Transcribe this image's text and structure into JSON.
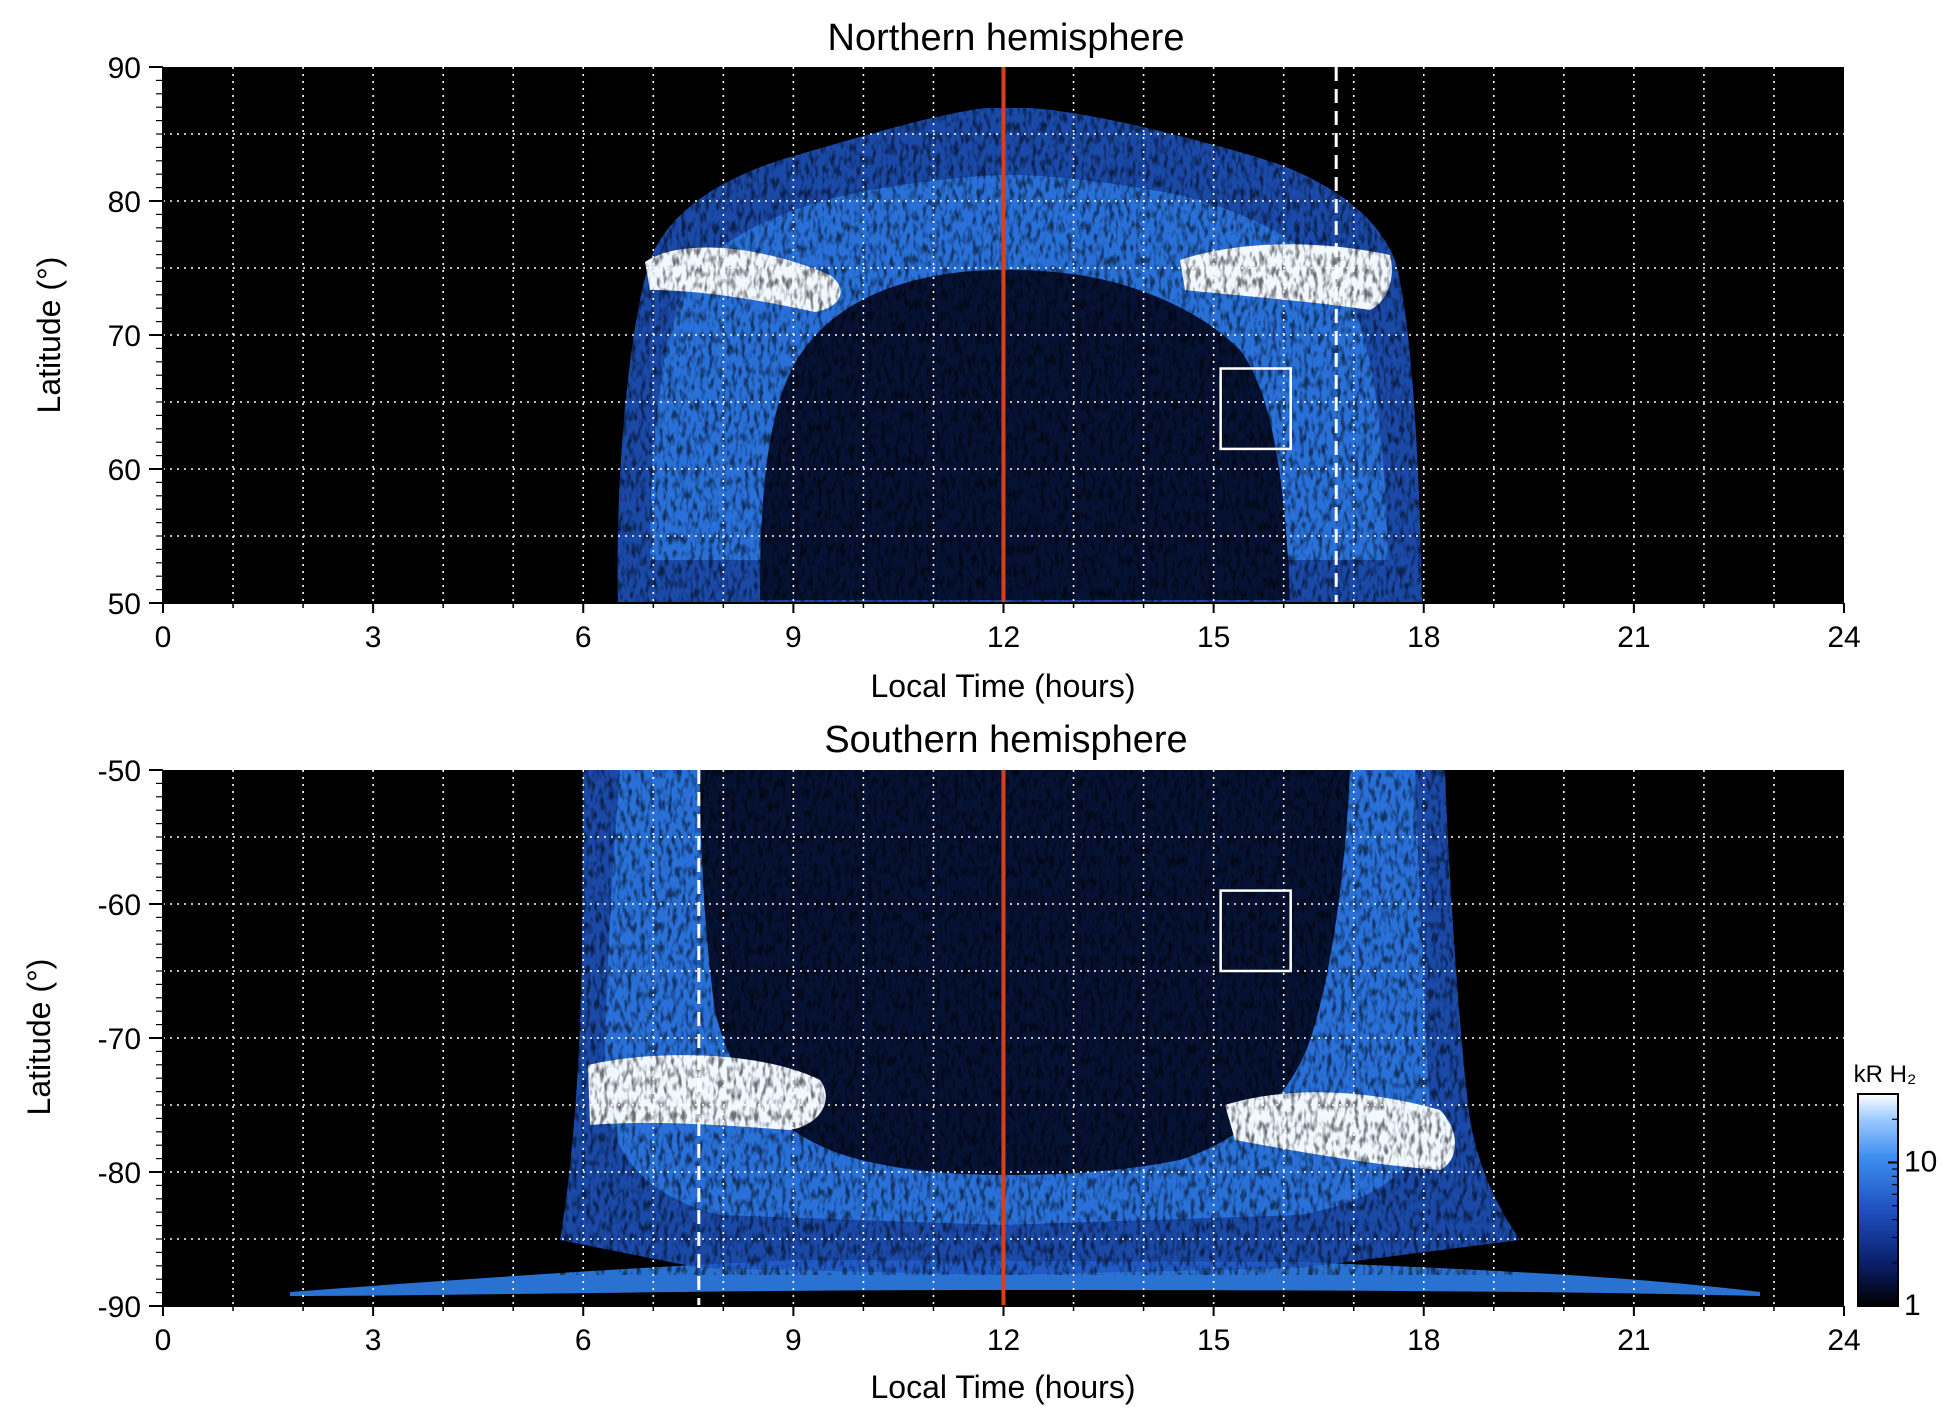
{
  "chart_data": [
    {
      "type": "heatmap",
      "title": "Northern hemisphere",
      "xlabel": "Local Time (hours)",
      "ylabel": "Latitude (°)",
      "xlim": [
        0,
        24
      ],
      "ylim": [
        50,
        90
      ],
      "x_ticks": [
        "0",
        "3",
        "6",
        "9",
        "12",
        "15",
        "18",
        "21",
        "24"
      ],
      "y_ticks": [
        "50",
        "60",
        "70",
        "80",
        "90"
      ],
      "grid": true,
      "emission_extent_hours": [
        6.5,
        18
      ],
      "auroral_oval": {
        "dawn_band": {
          "lt": [
            6.8,
            9.0
          ],
          "lat": [
            72,
            76
          ],
          "intensity": "bright"
        },
        "dusk_band": {
          "lt": [
            15.5,
            17.5
          ],
          "lat": [
            72,
            77
          ],
          "intensity": "bright"
        },
        "polar_cap_top_lat": 87
      },
      "markers": {
        "noon_line_lt": 12,
        "dashed_line_lt": 16.75,
        "box": {
          "lt": [
            15.1,
            16.1
          ],
          "lat": [
            61.5,
            67.5
          ]
        }
      },
      "colorscale": [
        "#000000",
        "#0a1f6a",
        "#1f4fbf",
        "#3d8ef0",
        "#9cc9ff",
        "#ffffff"
      ]
    },
    {
      "type": "heatmap",
      "title": "Southern hemisphere",
      "xlabel": "Local Time (hours)",
      "ylabel": "Latitude (°)",
      "xlim": [
        0,
        24
      ],
      "ylim": [
        -90,
        -50
      ],
      "x_ticks": [
        "0",
        "3",
        "6",
        "9",
        "12",
        "15",
        "18",
        "21",
        "24"
      ],
      "y_ticks": [
        "-90",
        "-80",
        "-70",
        "-60",
        "-50"
      ],
      "grid": true,
      "emission_extent_hours": [
        6,
        18.5
      ],
      "auroral_oval": {
        "dawn_band": {
          "lt": [
            6.0,
            9.0
          ],
          "lat": [
            -77,
            -72
          ],
          "intensity": "bright"
        },
        "dusk_band": {
          "lt": [
            15.5,
            18.0
          ],
          "lat": [
            -81,
            -75
          ],
          "intensity": "bright"
        },
        "polar_floor_lat": -88,
        "floor_extent_hours": [
          1.8,
          22.8
        ]
      },
      "markers": {
        "noon_line_lt": 12,
        "dashed_line_lt": 7.65,
        "box": {
          "lt": [
            15.1,
            16.1
          ],
          "lat": [
            -65,
            -59
          ]
        }
      },
      "colorbar": {
        "label": "kR H₂",
        "ticks": [
          "1",
          "10"
        ],
        "scale": "log",
        "range": [
          1,
          30
        ]
      }
    }
  ]
}
